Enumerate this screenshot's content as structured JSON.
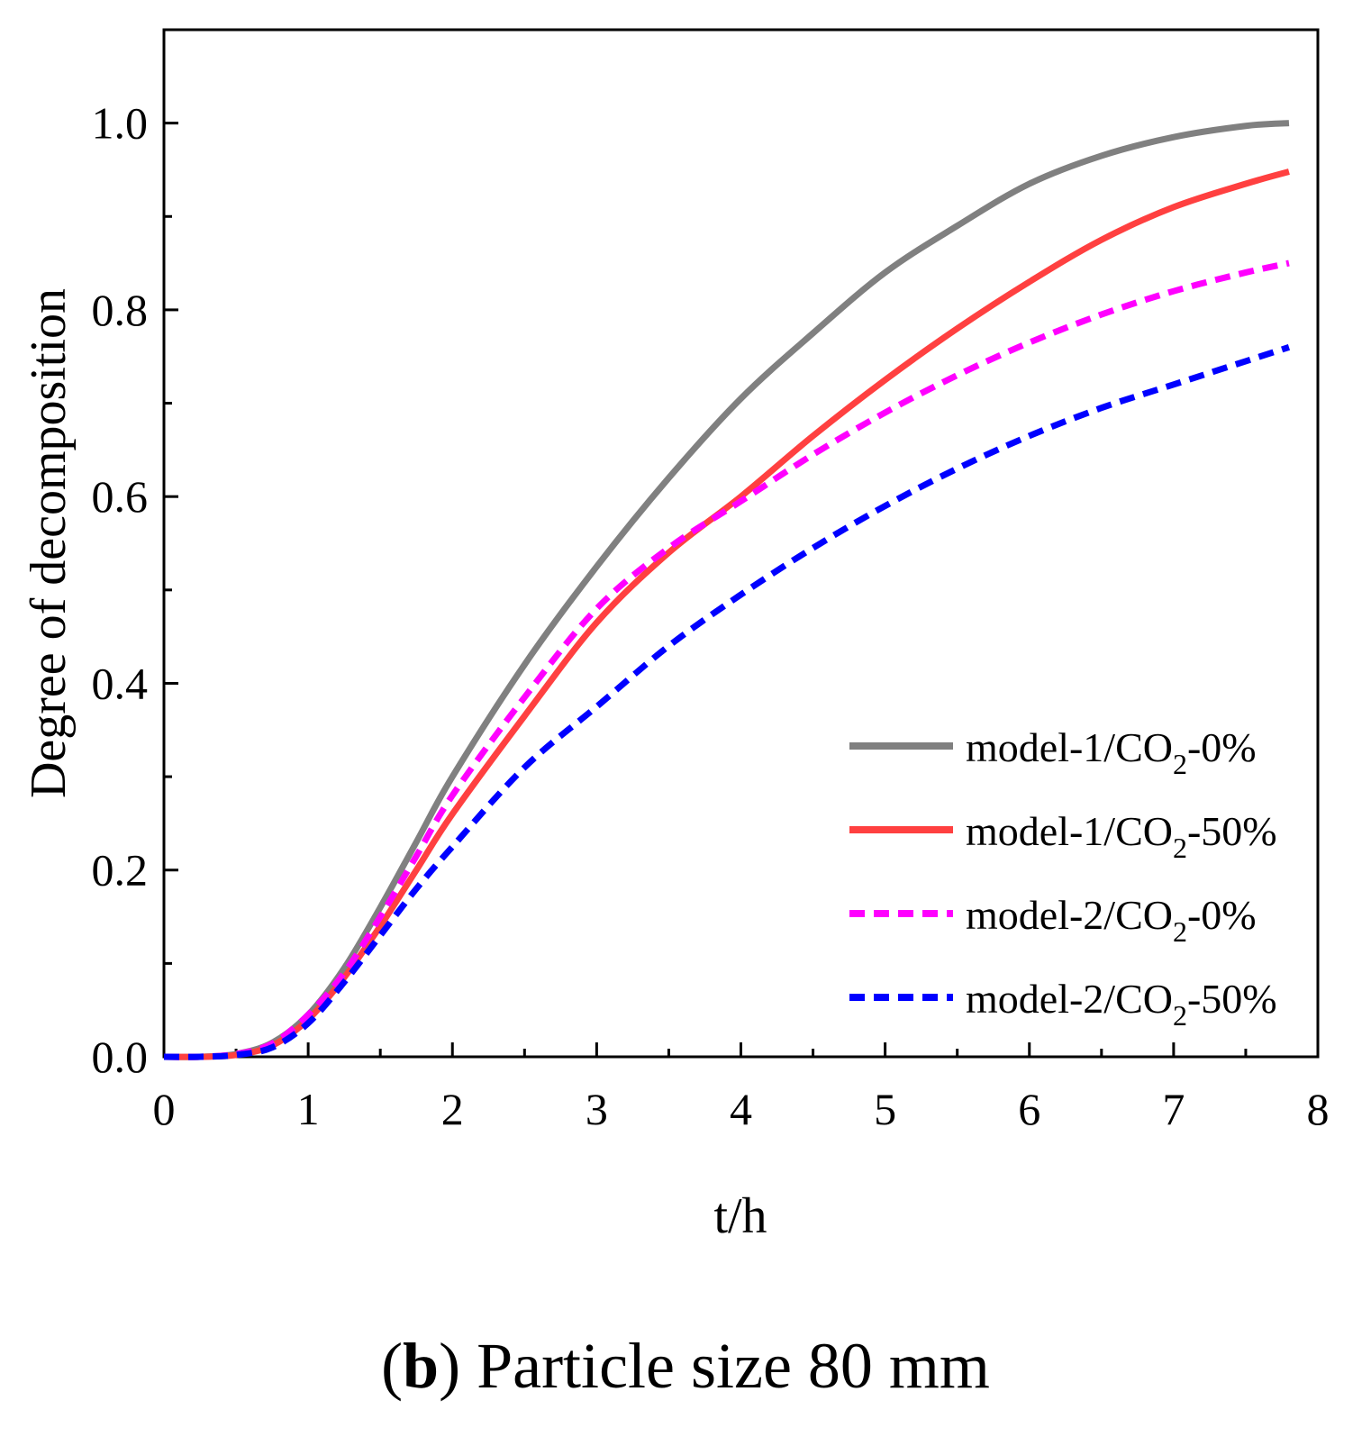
{
  "chart_data": {
    "type": "line",
    "title": "",
    "xlabel": "t/h",
    "ylabel": "Degree of decomposition",
    "xlim": [
      0,
      8
    ],
    "ylim": [
      0,
      1.1
    ],
    "x_ticks": [
      "0",
      "1",
      "2",
      "3",
      "4",
      "5",
      "6",
      "7",
      "8"
    ],
    "y_ticks": [
      "0.0",
      "0.2",
      "0.4",
      "0.6",
      "0.8",
      "1.0"
    ],
    "grid": false,
    "legend_position": "bottom-right",
    "x": [
      0,
      0.25,
      0.5,
      0.75,
      1.0,
      1.25,
      1.5,
      1.75,
      2.0,
      2.5,
      3.0,
      3.5,
      4.0,
      4.5,
      5.0,
      5.5,
      6.0,
      6.5,
      7.0,
      7.5,
      7.8
    ],
    "series": [
      {
        "name": "model-1/CO2-0%",
        "label_main": "model-1/CO",
        "label_sub": "2",
        "label_tail": "-0%",
        "color": "#808080",
        "dash": "solid",
        "values": [
          0,
          0,
          0.003,
          0.015,
          0.045,
          0.095,
          0.16,
          0.23,
          0.3,
          0.42,
          0.525,
          0.62,
          0.705,
          0.775,
          0.84,
          0.89,
          0.935,
          0.965,
          0.985,
          0.997,
          1.0
        ]
      },
      {
        "name": "model-1/CO2-50%",
        "label_main": "model-1/CO",
        "label_sub": "2",
        "label_tail": "-50%",
        "color": "#ff4040",
        "dash": "solid",
        "values": [
          0,
          0,
          0.002,
          0.012,
          0.04,
          0.085,
          0.14,
          0.2,
          0.26,
          0.365,
          0.465,
          0.54,
          0.6,
          0.665,
          0.725,
          0.78,
          0.83,
          0.875,
          0.91,
          0.935,
          0.948
        ]
      },
      {
        "name": "model-2/CO2-0%",
        "label_main": "model-2/CO",
        "label_sub": "2",
        "label_tail": "-0%",
        "color": "#ff00ff",
        "dash": "dashed",
        "values": [
          0,
          0,
          0.003,
          0.014,
          0.045,
          0.09,
          0.15,
          0.215,
          0.28,
          0.385,
          0.48,
          0.545,
          0.595,
          0.645,
          0.69,
          0.73,
          0.765,
          0.795,
          0.82,
          0.84,
          0.85
        ]
      },
      {
        "name": "model-2/CO2-50%",
        "label_main": "model-2/CO",
        "label_sub": "2",
        "label_tail": "-50%",
        "color": "#0000ff",
        "dash": "dashed",
        "values": [
          0,
          0,
          0.002,
          0.01,
          0.036,
          0.08,
          0.13,
          0.18,
          0.225,
          0.31,
          0.375,
          0.44,
          0.495,
          0.545,
          0.59,
          0.63,
          0.665,
          0.695,
          0.72,
          0.745,
          0.76
        ]
      }
    ]
  },
  "caption": {
    "open_paren": "(",
    "letter": "b",
    "close_paren": ")",
    "text": " Particle size 80 mm"
  }
}
